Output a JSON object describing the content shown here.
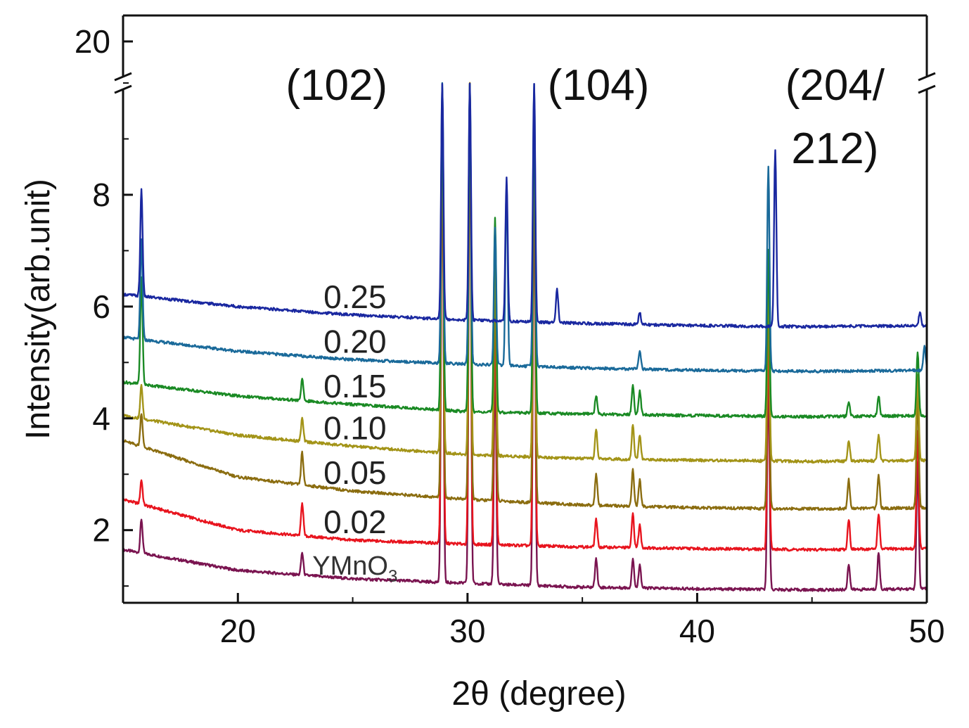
{
  "chart_data": {
    "type": "line",
    "xlabel": "2θ (degree)",
    "ylabel": "Intensity(arb.unit)",
    "xlim": [
      15,
      50
    ],
    "ylim": [
      0.7,
      20.5
    ],
    "axis_break": {
      "lower_max": 10,
      "upper_min": 19.2,
      "break_label_value": 20
    },
    "x_ticks": [
      20,
      30,
      40,
      50
    ],
    "y_ticks": [
      2,
      4,
      6,
      8,
      20
    ],
    "grid": false,
    "peak_annotations": [
      {
        "text": "(102)",
        "x": 24.3
      },
      {
        "text": "(104)",
        "x": 35.7
      },
      {
        "text": "(204/",
        "x": 46.0
      },
      {
        "text": "212)",
        "x": 46.0
      }
    ],
    "peaks_x": [
      15.8,
      22.8,
      28.9,
      29.9,
      30.1,
      31.2,
      31.7,
      32.9,
      33.9,
      35.6,
      37.2,
      37.5,
      43.1,
      43.4,
      46.6,
      47.9,
      49.5,
      49.7
    ],
    "series": [
      {
        "name": "YMnO",
        "name_sub": "3",
        "color": "#7a1450",
        "baseline": [
          [
            15,
            1.65
          ],
          [
            20,
            1.28
          ],
          [
            25,
            1.13
          ],
          [
            30,
            1.05
          ],
          [
            35,
            0.98
          ],
          [
            40,
            0.95
          ],
          [
            45,
            0.93
          ],
          [
            50,
            0.95
          ]
        ],
        "peaks": [
          [
            15.8,
            2.2
          ],
          [
            22.8,
            1.6
          ],
          [
            28.9,
            9.4
          ],
          [
            30.1,
            10.0
          ],
          [
            31.2,
            5.0
          ],
          [
            32.9,
            8.5
          ],
          [
            35.6,
            1.5
          ],
          [
            37.2,
            1.5
          ],
          [
            37.5,
            1.4
          ],
          [
            43.1,
            4.8
          ],
          [
            46.6,
            1.4
          ],
          [
            47.9,
            1.6
          ],
          [
            49.6,
            3.2
          ]
        ]
      },
      {
        "name": "0.02",
        "color": "#e8141e",
        "baseline": [
          [
            15,
            2.55
          ],
          [
            20,
            2.0
          ],
          [
            25,
            1.82
          ],
          [
            30,
            1.75
          ],
          [
            35,
            1.7
          ],
          [
            40,
            1.67
          ],
          [
            45,
            1.65
          ],
          [
            50,
            1.67
          ]
        ],
        "peaks": [
          [
            15.8,
            2.9
          ],
          [
            22.8,
            2.5
          ],
          [
            28.9,
            9.6
          ],
          [
            30.1,
            10.0
          ],
          [
            31.2,
            6.0
          ],
          [
            32.9,
            9.0
          ],
          [
            35.6,
            2.2
          ],
          [
            37.2,
            2.3
          ],
          [
            37.5,
            2.1
          ],
          [
            43.1,
            5.5
          ],
          [
            46.6,
            2.2
          ],
          [
            47.9,
            2.3
          ],
          [
            49.6,
            3.8
          ]
        ]
      },
      {
        "name": "0.05",
        "color": "#8b6d10",
        "baseline": [
          [
            15,
            3.6
          ],
          [
            20,
            2.95
          ],
          [
            25,
            2.7
          ],
          [
            30,
            2.55
          ],
          [
            35,
            2.45
          ],
          [
            40,
            2.4
          ],
          [
            45,
            2.38
          ],
          [
            50,
            2.4
          ]
        ],
        "peaks": [
          [
            15.8,
            4.1
          ],
          [
            22.8,
            3.4
          ],
          [
            28.9,
            9.7
          ],
          [
            30.1,
            10.0
          ],
          [
            31.2,
            6.6
          ],
          [
            32.9,
            9.3
          ],
          [
            35.6,
            3.0
          ],
          [
            37.2,
            3.1
          ],
          [
            37.5,
            2.9
          ],
          [
            43.1,
            6.2
          ],
          [
            46.6,
            2.9
          ],
          [
            47.9,
            3.0
          ],
          [
            49.6,
            4.4
          ]
        ]
      },
      {
        "name": "0.10",
        "color": "#a39418",
        "baseline": [
          [
            15,
            4.05
          ],
          [
            20,
            3.7
          ],
          [
            25,
            3.5
          ],
          [
            30,
            3.35
          ],
          [
            35,
            3.28
          ],
          [
            40,
            3.25
          ],
          [
            45,
            3.23
          ],
          [
            50,
            3.25
          ]
        ],
        "peaks": [
          [
            15.8,
            4.6
          ],
          [
            22.8,
            4.0
          ],
          [
            28.9,
            9.8
          ],
          [
            30.1,
            10.0
          ],
          [
            31.2,
            7.0
          ],
          [
            32.9,
            9.5
          ],
          [
            35.6,
            3.8
          ],
          [
            37.2,
            3.9
          ],
          [
            37.5,
            3.7
          ],
          [
            43.1,
            6.6
          ],
          [
            46.6,
            3.6
          ],
          [
            47.9,
            3.7
          ],
          [
            49.6,
            4.8
          ]
        ]
      },
      {
        "name": "0.15",
        "color": "#1a8a24",
        "baseline": [
          [
            15,
            4.65
          ],
          [
            20,
            4.4
          ],
          [
            25,
            4.25
          ],
          [
            30,
            4.12
          ],
          [
            35,
            4.08
          ],
          [
            40,
            4.05
          ],
          [
            45,
            4.03
          ],
          [
            50,
            4.05
          ]
        ],
        "peaks": [
          [
            15.8,
            6.5
          ],
          [
            22.8,
            4.7
          ],
          [
            28.9,
            9.9
          ],
          [
            30.1,
            10.0
          ],
          [
            31.2,
            7.6
          ],
          [
            32.9,
            9.7
          ],
          [
            35.6,
            4.4
          ],
          [
            37.2,
            4.6
          ],
          [
            37.5,
            4.5
          ],
          [
            43.1,
            7.0
          ],
          [
            46.6,
            4.3
          ],
          [
            47.9,
            4.4
          ],
          [
            49.6,
            5.2
          ]
        ]
      },
      {
        "name": "0.20",
        "color": "#1a6a9a",
        "baseline": [
          [
            15,
            5.45
          ],
          [
            20,
            5.2
          ],
          [
            25,
            5.05
          ],
          [
            30,
            4.97
          ],
          [
            35,
            4.9
          ],
          [
            40,
            4.86
          ],
          [
            45,
            4.84
          ],
          [
            50,
            4.86
          ]
        ],
        "peaks": [
          [
            15.8,
            7.2
          ],
          [
            28.9,
            10.0
          ],
          [
            30.1,
            10.0
          ],
          [
            31.2,
            7.4
          ],
          [
            31.7,
            8.2
          ],
          [
            32.9,
            10.0
          ],
          [
            37.5,
            5.2
          ],
          [
            43.1,
            8.5
          ],
          [
            49.9,
            5.3
          ]
        ]
      },
      {
        "name": "0.25",
        "color": "#1a28a0",
        "baseline": [
          [
            15,
            6.22
          ],
          [
            20,
            6.0
          ],
          [
            25,
            5.85
          ],
          [
            30,
            5.76
          ],
          [
            35,
            5.7
          ],
          [
            40,
            5.66
          ],
          [
            45,
            5.64
          ],
          [
            50,
            5.66
          ]
        ],
        "peaks": [
          [
            15.8,
            8.1
          ],
          [
            28.9,
            10.0
          ],
          [
            30.1,
            10.0
          ],
          [
            31.7,
            8.3
          ],
          [
            32.9,
            10.0
          ],
          [
            33.9,
            6.3
          ],
          [
            37.5,
            5.9
          ],
          [
            43.4,
            8.8
          ],
          [
            49.7,
            5.9
          ]
        ]
      }
    ]
  }
}
